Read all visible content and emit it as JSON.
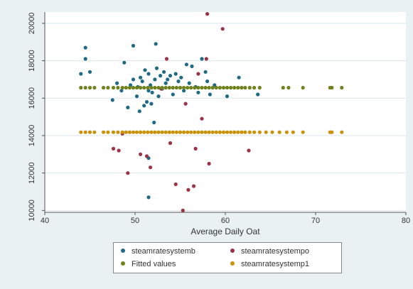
{
  "chart_data": {
    "type": "scatter",
    "title": "",
    "xlabel": "Average Daily Oat",
    "ylabel": "",
    "xlim": [
      40,
      80
    ],
    "ylim": [
      9900,
      20600
    ],
    "x_ticks": [
      40,
      50,
      60,
      70,
      80
    ],
    "y_ticks": [
      10000,
      12000,
      14000,
      16000,
      18000,
      20000
    ],
    "grid": true,
    "legend_position": "bottom",
    "series": [
      {
        "name": "steamratesystemb",
        "color": "#1f6b86",
        "points": [
          [
            44.0,
            17300
          ],
          [
            44.5,
            18100
          ],
          [
            44.5,
            18700
          ],
          [
            45.0,
            17400
          ],
          [
            47.5,
            15900
          ],
          [
            48.0,
            16800
          ],
          [
            48.5,
            16400
          ],
          [
            48.8,
            17900
          ],
          [
            49.2,
            15500
          ],
          [
            49.5,
            16700
          ],
          [
            49.8,
            18800
          ],
          [
            49.8,
            17000
          ],
          [
            50.2,
            16100
          ],
          [
            50.3,
            16600
          ],
          [
            50.5,
            15300
          ],
          [
            50.6,
            17100
          ],
          [
            50.8,
            16900
          ],
          [
            51.0,
            15600
          ],
          [
            51.1,
            17500
          ],
          [
            51.3,
            15800
          ],
          [
            51.5,
            16400
          ],
          [
            51.5,
            17300
          ],
          [
            51.7,
            16700
          ],
          [
            51.8,
            15700
          ],
          [
            51.9,
            16300
          ],
          [
            52.1,
            14700
          ],
          [
            52.2,
            17000
          ],
          [
            52.3,
            18900
          ],
          [
            52.4,
            17600
          ],
          [
            52.6,
            16100
          ],
          [
            52.8,
            17200
          ],
          [
            53.0,
            16500
          ],
          [
            53.2,
            17400
          ],
          [
            53.4,
            16800
          ],
          [
            53.6,
            17000
          ],
          [
            53.9,
            17200
          ],
          [
            54.2,
            16200
          ],
          [
            54.5,
            17300
          ],
          [
            54.8,
            16900
          ],
          [
            55.1,
            17100
          ],
          [
            55.4,
            16400
          ],
          [
            55.7,
            17800
          ],
          [
            56.0,
            16800
          ],
          [
            56.3,
            17700
          ],
          [
            56.7,
            16600
          ],
          [
            57.0,
            16300
          ],
          [
            57.4,
            18100
          ],
          [
            57.8,
            17400
          ],
          [
            58.0,
            16900
          ],
          [
            58.3,
            16200
          ],
          [
            58.8,
            16700
          ],
          [
            60.2,
            16100
          ],
          [
            61.5,
            17100
          ],
          [
            63.6,
            16200
          ],
          [
            51.5,
            12800
          ],
          [
            51.5,
            10700
          ]
        ]
      },
      {
        "name": "steamratesystempo",
        "color": "#9c3246",
        "points": [
          [
            47.6,
            13300
          ],
          [
            48.2,
            13200
          ],
          [
            48.6,
            14100
          ],
          [
            49.2,
            12000
          ],
          [
            50.6,
            13000
          ],
          [
            51.3,
            12900
          ],
          [
            51.7,
            12300
          ],
          [
            52.9,
            16500
          ],
          [
            53.5,
            18100
          ],
          [
            53.9,
            13600
          ],
          [
            54.5,
            11400
          ],
          [
            55.3,
            10000
          ],
          [
            55.6,
            15700
          ],
          [
            55.9,
            11100
          ],
          [
            56.5,
            11300
          ],
          [
            56.7,
            13300
          ],
          [
            57.0,
            17300
          ],
          [
            57.4,
            14900
          ],
          [
            57.9,
            18100
          ],
          [
            58.0,
            20500
          ],
          [
            58.2,
            12500
          ],
          [
            59.7,
            19700
          ],
          [
            62.6,
            13200
          ]
        ]
      },
      {
        "name": "Fitted values",
        "color": "#70821e",
        "y": 16560,
        "x": [
          44.0,
          44.5,
          45.0,
          45.5,
          46.5,
          47.0,
          47.6,
          48.1,
          48.6,
          49.0,
          49.4,
          49.8,
          50.2,
          50.6,
          51.0,
          51.4,
          51.8,
          52.2,
          52.6,
          53.0,
          53.4,
          53.8,
          54.2,
          54.6,
          55.0,
          55.4,
          55.8,
          56.2,
          56.6,
          57.0,
          57.4,
          57.8,
          58.2,
          58.6,
          59.0,
          59.4,
          59.8,
          60.2,
          60.6,
          61.0,
          61.4,
          61.8,
          62.2,
          62.7,
          63.2,
          63.8,
          66.4,
          67.0,
          68.6,
          71.6,
          71.8,
          72.9
        ]
      },
      {
        "name": "steamratesystemp1",
        "color": "#c9920a",
        "y": 14180,
        "x": [
          44.0,
          44.5,
          45.0,
          45.5,
          46.5,
          47.0,
          47.6,
          48.1,
          48.6,
          49.0,
          49.4,
          49.8,
          50.2,
          50.6,
          51.0,
          51.4,
          51.8,
          52.2,
          52.6,
          53.0,
          53.4,
          53.8,
          54.2,
          54.6,
          55.0,
          55.4,
          55.8,
          56.2,
          56.6,
          57.0,
          57.4,
          57.8,
          58.2,
          58.6,
          59.0,
          59.4,
          59.8,
          60.2,
          60.6,
          61.0,
          61.4,
          61.8,
          62.2,
          62.7,
          63.2,
          63.8,
          64.5,
          65.2,
          66.0,
          66.8,
          67.5,
          68.6,
          71.6,
          71.8,
          72.9
        ]
      }
    ]
  }
}
